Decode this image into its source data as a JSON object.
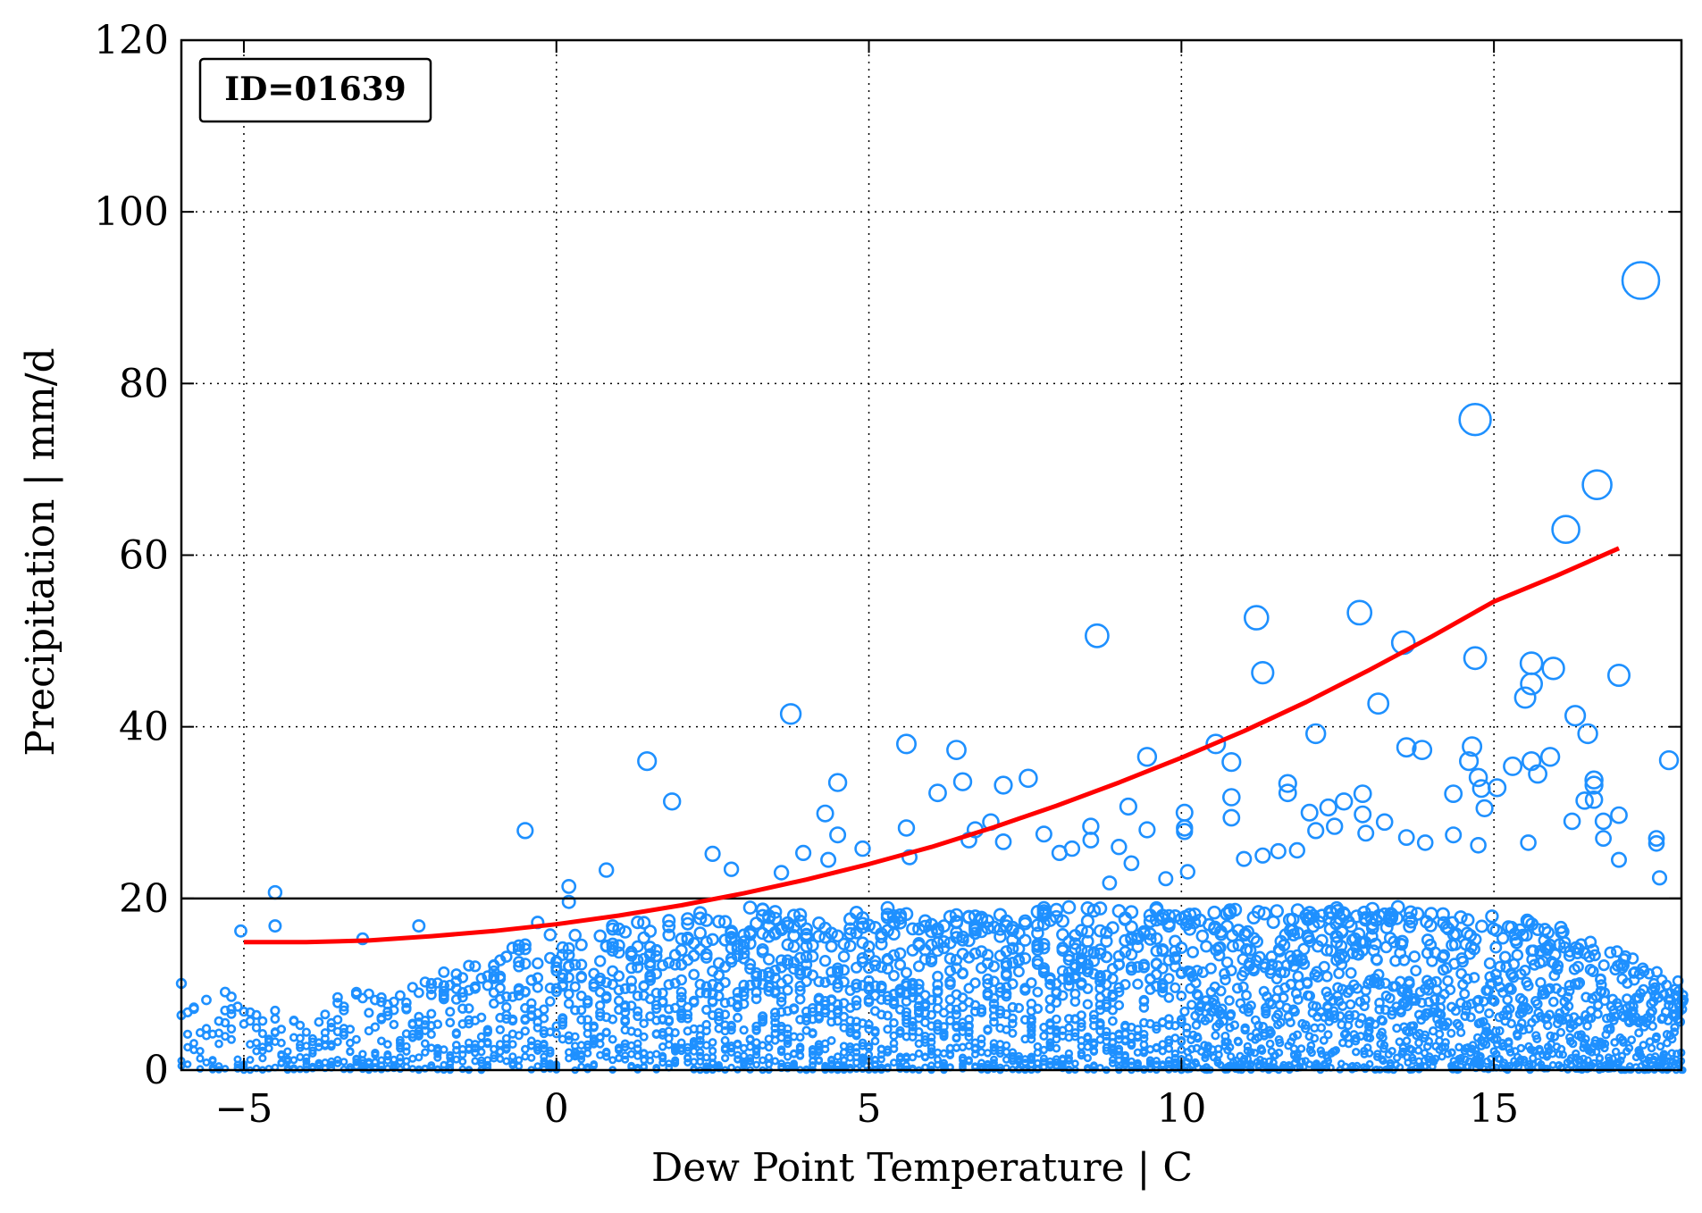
{
  "chart_data": {
    "type": "scatter",
    "title": "",
    "annotation": "ID=01639",
    "xlabel": "Dew Point Temperature | C",
    "ylabel": "Precipitation | mm/d",
    "xlim": [
      -6,
      18
    ],
    "ylim": [
      0,
      120
    ],
    "xticks": [
      -5,
      0,
      5,
      10,
      15
    ],
    "yticks": [
      0,
      20,
      40,
      60,
      80,
      100,
      120
    ],
    "xtick_labels": [
      "−5",
      "0",
      "5",
      "10",
      "15"
    ],
    "ytick_labels": [
      "0",
      "20",
      "40",
      "60",
      "80",
      "100",
      "120"
    ],
    "grid": true,
    "grid_style": "dotted",
    "threshold_line": 20,
    "marker_style": "open-circle",
    "marker_size_encodes": "precipitation",
    "colors": {
      "points": "#1E90FF",
      "fit": "#FF0000",
      "threshold": "#000000"
    },
    "outlier_points": [
      [
        -5.05,
        16.2
      ],
      [
        -4.5,
        20.7
      ],
      [
        -4.5,
        16.8
      ],
      [
        -3.1,
        15.3
      ],
      [
        -2.2,
        16.8
      ],
      [
        -0.5,
        27.9
      ],
      [
        -0.3,
        17.2
      ],
      [
        0.2,
        21.4
      ],
      [
        0.2,
        19.6
      ],
      [
        0.8,
        23.3
      ],
      [
        1.45,
        36.0
      ],
      [
        1.85,
        31.3
      ],
      [
        2.5,
        25.2
      ],
      [
        2.8,
        23.4
      ],
      [
        3.6,
        23.0
      ],
      [
        3.75,
        41.5
      ],
      [
        3.95,
        25.3
      ],
      [
        4.3,
        29.9
      ],
      [
        4.35,
        24.5
      ],
      [
        4.5,
        33.5
      ],
      [
        4.5,
        27.4
      ],
      [
        4.9,
        25.8
      ],
      [
        5.6,
        38.0
      ],
      [
        5.6,
        28.2
      ],
      [
        5.65,
        24.8
      ],
      [
        6.1,
        32.3
      ],
      [
        6.4,
        37.3
      ],
      [
        6.5,
        33.6
      ],
      [
        6.6,
        26.8
      ],
      [
        6.7,
        28.0
      ],
      [
        6.95,
        28.9
      ],
      [
        7.15,
        33.2
      ],
      [
        7.15,
        26.6
      ],
      [
        7.55,
        34.0
      ],
      [
        7.8,
        27.5
      ],
      [
        8.05,
        25.3
      ],
      [
        8.25,
        25.8
      ],
      [
        8.55,
        28.4
      ],
      [
        8.55,
        26.8
      ],
      [
        8.65,
        50.6
      ],
      [
        8.85,
        21.8
      ],
      [
        9.0,
        26.0
      ],
      [
        9.15,
        30.7
      ],
      [
        9.2,
        24.1
      ],
      [
        9.45,
        36.5
      ],
      [
        9.45,
        28.0
      ],
      [
        9.75,
        22.3
      ],
      [
        10.05,
        30.0
      ],
      [
        10.05,
        28.2
      ],
      [
        10.05,
        27.8
      ],
      [
        10.1,
        23.1
      ],
      [
        10.55,
        38.0
      ],
      [
        10.8,
        35.9
      ],
      [
        10.8,
        31.8
      ],
      [
        10.8,
        29.4
      ],
      [
        11.0,
        24.6
      ],
      [
        11.2,
        52.7
      ],
      [
        11.3,
        46.3
      ],
      [
        11.3,
        25.0
      ],
      [
        11.55,
        25.5
      ],
      [
        11.7,
        33.4
      ],
      [
        11.7,
        32.3
      ],
      [
        11.85,
        25.6
      ],
      [
        12.05,
        30.0
      ],
      [
        12.15,
        39.2
      ],
      [
        12.15,
        27.9
      ],
      [
        12.35,
        30.6
      ],
      [
        12.45,
        28.4
      ],
      [
        12.6,
        31.3
      ],
      [
        12.85,
        53.3
      ],
      [
        12.9,
        32.2
      ],
      [
        12.9,
        29.8
      ],
      [
        12.95,
        27.6
      ],
      [
        13.15,
        42.7
      ],
      [
        13.25,
        28.9
      ],
      [
        13.55,
        49.8
      ],
      [
        13.6,
        37.6
      ],
      [
        13.6,
        27.1
      ],
      [
        13.85,
        37.3
      ],
      [
        13.9,
        26.5
      ],
      [
        14.35,
        32.2
      ],
      [
        14.35,
        27.4
      ],
      [
        14.6,
        36.0
      ],
      [
        14.65,
        37.7
      ],
      [
        14.7,
        75.8
      ],
      [
        14.7,
        48.0
      ],
      [
        14.75,
        34.1
      ],
      [
        14.75,
        26.2
      ],
      [
        14.8,
        32.8
      ],
      [
        14.85,
        30.5
      ],
      [
        15.05,
        32.9
      ],
      [
        15.3,
        35.4
      ],
      [
        15.5,
        43.4
      ],
      [
        15.55,
        26.5
      ],
      [
        15.6,
        47.4
      ],
      [
        15.6,
        45.0
      ],
      [
        15.6,
        36.0
      ],
      [
        15.7,
        34.5
      ],
      [
        15.9,
        36.5
      ],
      [
        15.95,
        46.8
      ],
      [
        16.15,
        63.0
      ],
      [
        16.25,
        29.0
      ],
      [
        16.3,
        41.3
      ],
      [
        16.45,
        31.4
      ],
      [
        16.5,
        39.2
      ],
      [
        16.6,
        33.8
      ],
      [
        16.6,
        33.2
      ],
      [
        16.6,
        31.5
      ],
      [
        16.65,
        68.2
      ],
      [
        16.75,
        29.0
      ],
      [
        16.75,
        27.0
      ],
      [
        17.0,
        46.0
      ],
      [
        17.0,
        29.7
      ],
      [
        17.0,
        24.5
      ],
      [
        17.35,
        92.0
      ],
      [
        17.6,
        27.0
      ],
      [
        17.6,
        26.4
      ],
      [
        17.65,
        22.4
      ],
      [
        17.8,
        36.1
      ]
    ],
    "dense_band": {
      "description": "dense cloud of small circles below 20 mm/d",
      "x_range": [
        -6,
        18
      ],
      "typical_max_y": [
        [
          -6,
          12
        ],
        [
          -5,
          8
        ],
        [
          -4,
          7
        ],
        [
          -3,
          10
        ],
        [
          -2,
          11
        ],
        [
          -1,
          14
        ],
        [
          0,
          16
        ],
        [
          1,
          17
        ],
        [
          2,
          18
        ],
        [
          3,
          19
        ],
        [
          4,
          19
        ],
        [
          5,
          19
        ],
        [
          6,
          19
        ],
        [
          8,
          19
        ],
        [
          10,
          19
        ],
        [
          12,
          19
        ],
        [
          14,
          19
        ],
        [
          16,
          17
        ],
        [
          17,
          14
        ],
        [
          18,
          10
        ]
      ]
    },
    "fit_curve": {
      "name": "",
      "color": "#FF0000",
      "x": [
        -5,
        -4,
        -3,
        -2,
        -1,
        0,
        1,
        2,
        3,
        4,
        5,
        6,
        7,
        8,
        9,
        10,
        11,
        12,
        13,
        14,
        15,
        16,
        17
      ],
      "y": [
        14.9,
        14.9,
        15.1,
        15.6,
        16.2,
        17.0,
        18.0,
        19.2,
        20.6,
        22.2,
        24.0,
        26.0,
        28.3,
        30.8,
        33.5,
        36.4,
        39.5,
        42.9,
        46.6,
        50.5,
        54.6,
        57.6,
        60.8
      ]
    }
  }
}
